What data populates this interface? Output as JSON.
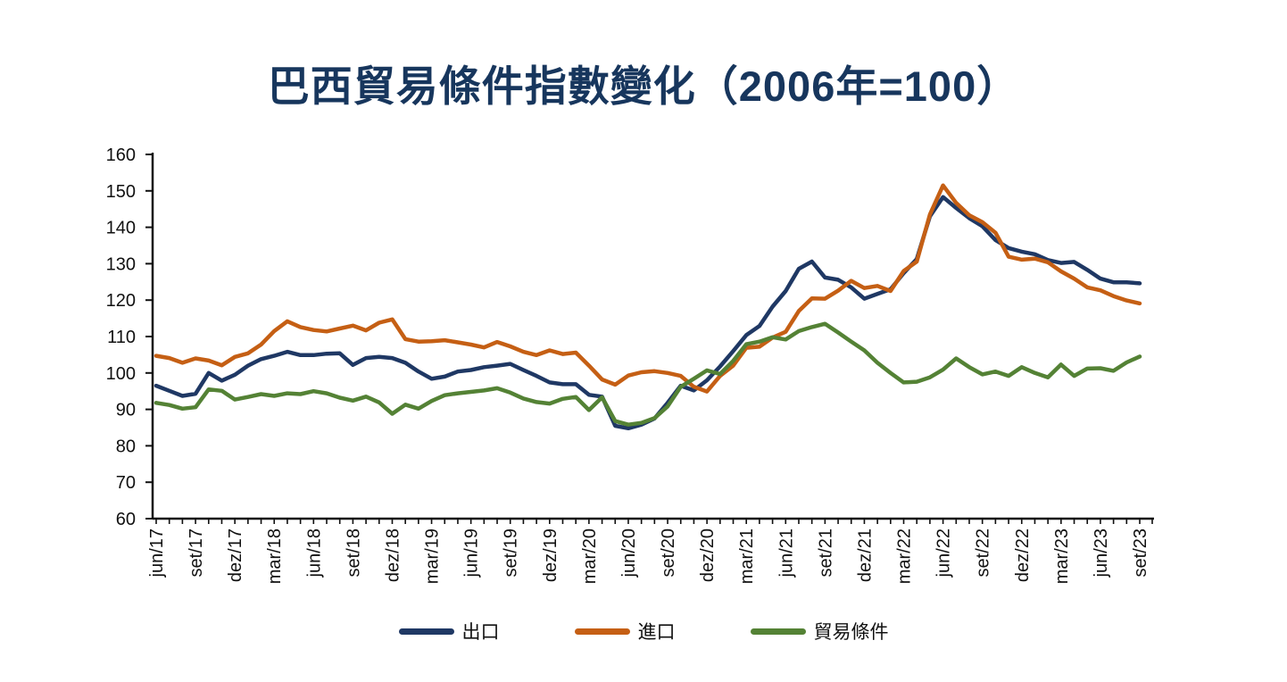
{
  "chart_data": {
    "type": "line",
    "title": "巴西貿易條件指數變化（2006年=100）",
    "xlabel": "",
    "ylabel": "",
    "ylim": [
      60,
      160
    ],
    "y_tick_step": 10,
    "y_tick_labels": [
      "60",
      "70",
      "80",
      "90",
      "100",
      "110",
      "120",
      "130",
      "140",
      "150",
      "160"
    ],
    "grid": false,
    "legend_position": "bottom",
    "n_points": 76,
    "points_per_labeled_tick": 3,
    "x_tick_labels": [
      "jun/17",
      "set/17",
      "dez/17",
      "mar/18",
      "jun/18",
      "set/18",
      "dez/18",
      "mar/19",
      "jun/19",
      "set/19",
      "dez/19",
      "mar/20",
      "jun/20",
      "set/20",
      "dez/20",
      "mar/21",
      "jun/21",
      "set/21",
      "dez/21",
      "mar/22",
      "jun/22",
      "set/22",
      "dez/22",
      "mar/23",
      "jun/23",
      "set/23"
    ],
    "axis_color": "#111111",
    "series": [
      {
        "name": "出口",
        "color": "#1f3864",
        "values": [
          96.5,
          95.1,
          93.7,
          94.3,
          100.0,
          97.9,
          99.5,
          102.0,
          103.8,
          104.7,
          105.8,
          104.9,
          104.9,
          105.3,
          105.4,
          102.2,
          104.1,
          104.4,
          104.1,
          102.8,
          100.4,
          98.4,
          99.0,
          100.4,
          100.8,
          101.6,
          102.0,
          102.5,
          100.8,
          99.2,
          97.4,
          96.9,
          96.9,
          94.0,
          93.5,
          85.5,
          84.8,
          85.8,
          87.5,
          91.8,
          96.5,
          95.2,
          98.0,
          101.8,
          106.0,
          110.4,
          112.9,
          118.2,
          122.5,
          128.6,
          130.6,
          126.2,
          125.6,
          123.5,
          120.4,
          121.7,
          123.0,
          127.4,
          131.3,
          143.0,
          148.3,
          145.3,
          142.5,
          140.3,
          136.5,
          134.3,
          133.3,
          132.6,
          131.0,
          130.2,
          130.5,
          128.3,
          125.9,
          124.9,
          124.9,
          124.6
        ]
      },
      {
        "name": "進口",
        "color": "#c55f14",
        "values": [
          104.7,
          104.1,
          102.8,
          104.0,
          103.4,
          102.1,
          104.4,
          105.4,
          107.8,
          111.5,
          114.2,
          112.6,
          111.8,
          111.4,
          112.2,
          113.0,
          111.7,
          113.8,
          114.7,
          109.3,
          108.6,
          108.7,
          109.0,
          108.4,
          107.8,
          107.0,
          108.5,
          107.3,
          105.8,
          104.9,
          106.2,
          105.2,
          105.6,
          102.0,
          98.2,
          96.8,
          99.3,
          100.2,
          100.5,
          100.0,
          99.2,
          96.2,
          94.9,
          99.2,
          102.0,
          106.9,
          107.2,
          109.7,
          111.3,
          117.0,
          120.5,
          120.4,
          122.6,
          125.3,
          123.3,
          123.9,
          122.5,
          128.0,
          130.6,
          143.5,
          151.5,
          146.7,
          143.3,
          141.4,
          138.5,
          131.9,
          131.1,
          131.4,
          130.4,
          127.9,
          125.9,
          123.5,
          122.7,
          121.1,
          119.9,
          119.1
        ]
      },
      {
        "name": "貿易條件",
        "color": "#548235",
        "values": [
          91.8,
          91.2,
          90.2,
          90.6,
          95.5,
          95.1,
          92.7,
          93.4,
          94.2,
          93.7,
          94.4,
          94.2,
          95.0,
          94.4,
          93.2,
          92.4,
          93.5,
          91.9,
          88.8,
          91.3,
          90.2,
          92.3,
          93.9,
          94.4,
          94.8,
          95.2,
          95.8,
          94.6,
          93.0,
          92.0,
          91.6,
          92.9,
          93.4,
          89.8,
          93.3,
          86.8,
          85.8,
          86.3,
          87.6,
          90.8,
          96.2,
          98.4,
          100.7,
          99.7,
          103.3,
          107.9,
          108.6,
          109.8,
          109.2,
          111.5,
          112.6,
          113.5,
          111.1,
          108.6,
          106.2,
          102.8,
          100.0,
          97.4,
          97.6,
          98.8,
          100.9,
          104.0,
          101.6,
          99.6,
          100.4,
          99.2,
          101.6,
          100.0,
          98.8,
          102.3,
          99.2,
          101.2,
          101.3,
          100.6,
          102.9,
          104.5
        ]
      }
    ]
  }
}
